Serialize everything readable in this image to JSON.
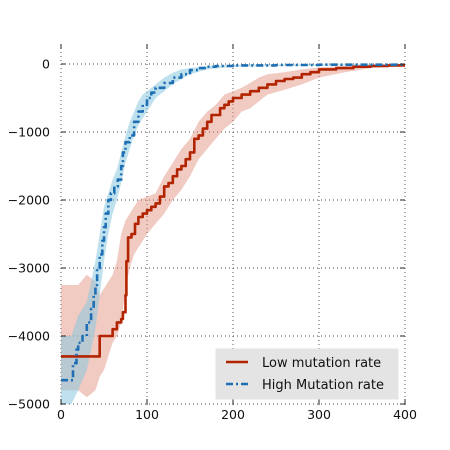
{
  "chart_data": {
    "type": "line",
    "xlim": [
      0,
      400
    ],
    "ylim": [
      -5000,
      300
    ],
    "x_ticks": [
      0,
      100,
      200,
      300,
      400
    ],
    "y_ticks": [
      0,
      -1000,
      -2000,
      -3000,
      -4000,
      -5000
    ],
    "x_tick_labels": [
      "0",
      "100",
      "200",
      "300",
      "400"
    ],
    "y_tick_labels": [
      "0",
      "−1000",
      "−2000",
      "−3000",
      "−4000",
      "−5000"
    ],
    "grid": true,
    "legend_position": "lower-right",
    "series": [
      {
        "name": "Low mutation rate",
        "color": "#b22400",
        "band_color": "#e08a78",
        "line_style": "solid",
        "step": true,
        "points": [
          [
            0,
            -4300
          ],
          [
            45,
            -4300
          ],
          [
            45,
            -4000
          ],
          [
            55,
            -4000
          ],
          [
            60,
            -3900
          ],
          [
            65,
            -3800
          ],
          [
            70,
            -3750
          ],
          [
            72,
            -3650
          ],
          [
            75,
            -3400
          ],
          [
            76,
            -2900
          ],
          [
            78,
            -2550
          ],
          [
            82,
            -2500
          ],
          [
            86,
            -2350
          ],
          [
            90,
            -2250
          ],
          [
            95,
            -2200
          ],
          [
            100,
            -2150
          ],
          [
            105,
            -2100
          ],
          [
            110,
            -2050
          ],
          [
            115,
            -1950
          ],
          [
            120,
            -1800
          ],
          [
            125,
            -1750
          ],
          [
            130,
            -1650
          ],
          [
            135,
            -1550
          ],
          [
            140,
            -1500
          ],
          [
            145,
            -1400
          ],
          [
            150,
            -1300
          ],
          [
            155,
            -1100
          ],
          [
            160,
            -1050
          ],
          [
            165,
            -950
          ],
          [
            170,
            -850
          ],
          [
            175,
            -750
          ],
          [
            185,
            -650
          ],
          [
            190,
            -600
          ],
          [
            195,
            -550
          ],
          [
            200,
            -500
          ],
          [
            210,
            -450
          ],
          [
            220,
            -400
          ],
          [
            230,
            -350
          ],
          [
            240,
            -300
          ],
          [
            250,
            -250
          ],
          [
            260,
            -220
          ],
          [
            270,
            -200
          ],
          [
            280,
            -150
          ],
          [
            290,
            -120
          ],
          [
            300,
            -80
          ],
          [
            320,
            -60
          ],
          [
            340,
            -40
          ],
          [
            360,
            -30
          ],
          [
            380,
            -20
          ],
          [
            400,
            -20
          ]
        ],
        "band_upper": [
          [
            0,
            -3250
          ],
          [
            20,
            -3250
          ],
          [
            30,
            -3100
          ],
          [
            40,
            -3200
          ],
          [
            45,
            -3400
          ],
          [
            50,
            -3300
          ],
          [
            55,
            -3200
          ],
          [
            60,
            -3100
          ],
          [
            65,
            -2900
          ],
          [
            70,
            -2500
          ],
          [
            75,
            -2300
          ],
          [
            80,
            -2200
          ],
          [
            85,
            -2100
          ],
          [
            90,
            -2000
          ],
          [
            100,
            -1950
          ],
          [
            110,
            -1900
          ],
          [
            120,
            -1650
          ],
          [
            130,
            -1450
          ],
          [
            140,
            -1250
          ],
          [
            150,
            -1100
          ],
          [
            160,
            -850
          ],
          [
            170,
            -700
          ],
          [
            180,
            -600
          ],
          [
            190,
            -450
          ],
          [
            200,
            -400
          ],
          [
            210,
            -350
          ],
          [
            220,
            -280
          ],
          [
            230,
            -200
          ],
          [
            240,
            -150
          ],
          [
            260,
            -120
          ],
          [
            280,
            -80
          ],
          [
            300,
            -50
          ],
          [
            330,
            -30
          ],
          [
            360,
            -15
          ],
          [
            400,
            -10
          ]
        ],
        "band_lower": [
          [
            0,
            -4800
          ],
          [
            20,
            -4800
          ],
          [
            30,
            -4900
          ],
          [
            40,
            -4800
          ],
          [
            45,
            -4600
          ],
          [
            50,
            -4500
          ],
          [
            55,
            -4300
          ],
          [
            60,
            -4100
          ],
          [
            65,
            -4000
          ],
          [
            70,
            -3800
          ],
          [
            75,
            -3300
          ],
          [
            80,
            -3000
          ],
          [
            85,
            -2800
          ],
          [
            90,
            -2700
          ],
          [
            100,
            -2500
          ],
          [
            110,
            -2350
          ],
          [
            120,
            -2200
          ],
          [
            130,
            -2000
          ],
          [
            140,
            -1850
          ],
          [
            150,
            -1650
          ],
          [
            160,
            -1400
          ],
          [
            170,
            -1250
          ],
          [
            180,
            -1100
          ],
          [
            190,
            -950
          ],
          [
            200,
            -850
          ],
          [
            210,
            -700
          ],
          [
            220,
            -650
          ],
          [
            230,
            -550
          ],
          [
            240,
            -450
          ],
          [
            260,
            -380
          ],
          [
            280,
            -300
          ],
          [
            300,
            -200
          ],
          [
            330,
            -120
          ],
          [
            360,
            -60
          ],
          [
            400,
            -30
          ]
        ]
      },
      {
        "name": "High Mutation rate",
        "color": "#1f6fb4",
        "band_color": "#8ac8e0",
        "line_style": "dashdot",
        "step": true,
        "points": [
          [
            0,
            -4650
          ],
          [
            12,
            -4650
          ],
          [
            14,
            -4400
          ],
          [
            18,
            -4200
          ],
          [
            20,
            -4100
          ],
          [
            25,
            -4000
          ],
          [
            30,
            -3800
          ],
          [
            35,
            -3600
          ],
          [
            38,
            -3400
          ],
          [
            40,
            -3250
          ],
          [
            42,
            -3000
          ],
          [
            45,
            -2800
          ],
          [
            48,
            -2600
          ],
          [
            50,
            -2400
          ],
          [
            52,
            -2200
          ],
          [
            55,
            -2000
          ],
          [
            58,
            -1900
          ],
          [
            62,
            -1800
          ],
          [
            66,
            -1700
          ],
          [
            70,
            -1500
          ],
          [
            72,
            -1300
          ],
          [
            75,
            -1150
          ],
          [
            80,
            -1050
          ],
          [
            85,
            -850
          ],
          [
            90,
            -700
          ],
          [
            95,
            -600
          ],
          [
            100,
            -500
          ],
          [
            105,
            -420
          ],
          [
            110,
            -350
          ],
          [
            120,
            -280
          ],
          [
            130,
            -200
          ],
          [
            140,
            -150
          ],
          [
            150,
            -90
          ],
          [
            160,
            -60
          ],
          [
            170,
            -40
          ],
          [
            180,
            -30
          ],
          [
            200,
            -20
          ],
          [
            250,
            -15
          ],
          [
            300,
            -10
          ],
          [
            400,
            -5
          ]
        ],
        "band_upper": [
          [
            0,
            -4000
          ],
          [
            12,
            -4000
          ],
          [
            20,
            -3700
          ],
          [
            30,
            -3500
          ],
          [
            40,
            -2900
          ],
          [
            45,
            -2500
          ],
          [
            50,
            -2100
          ],
          [
            55,
            -1900
          ],
          [
            60,
            -1700
          ],
          [
            65,
            -1550
          ],
          [
            70,
            -1300
          ],
          [
            75,
            -1050
          ],
          [
            80,
            -850
          ],
          [
            85,
            -700
          ],
          [
            90,
            -550
          ],
          [
            95,
            -450
          ],
          [
            100,
            -400
          ],
          [
            110,
            -300
          ],
          [
            120,
            -200
          ],
          [
            130,
            -130
          ],
          [
            140,
            -80
          ],
          [
            150,
            -60
          ],
          [
            170,
            -30
          ],
          [
            200,
            -10
          ],
          [
            400,
            0
          ]
        ],
        "band_lower": [
          [
            0,
            -5000
          ],
          [
            12,
            -5000
          ],
          [
            20,
            -4800
          ],
          [
            30,
            -4500
          ],
          [
            40,
            -3900
          ],
          [
            45,
            -3400
          ],
          [
            50,
            -2900
          ],
          [
            55,
            -2500
          ],
          [
            60,
            -2200
          ],
          [
            65,
            -2000
          ],
          [
            70,
            -1750
          ],
          [
            75,
            -1450
          ],
          [
            80,
            -1250
          ],
          [
            85,
            -1050
          ],
          [
            90,
            -900
          ],
          [
            95,
            -800
          ],
          [
            100,
            -700
          ],
          [
            110,
            -500
          ],
          [
            120,
            -400
          ],
          [
            130,
            -300
          ],
          [
            140,
            -220
          ],
          [
            150,
            -150
          ],
          [
            170,
            -80
          ],
          [
            200,
            -40
          ],
          [
            400,
            -10
          ]
        ]
      }
    ]
  }
}
